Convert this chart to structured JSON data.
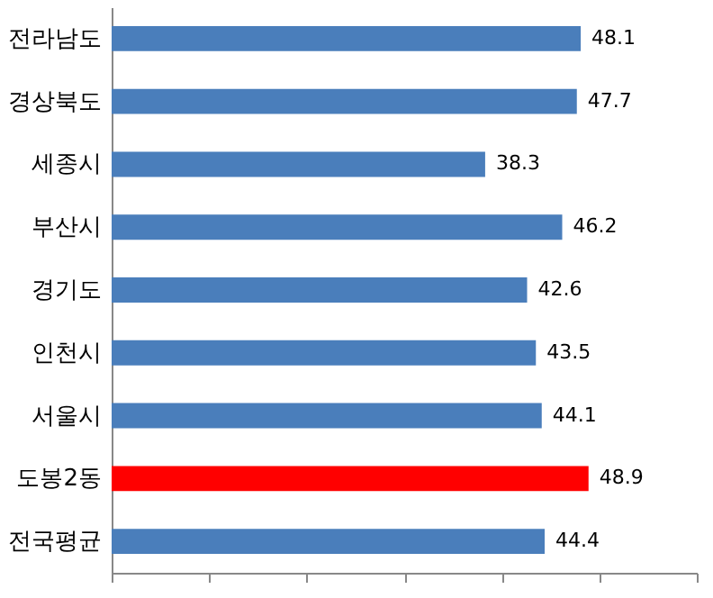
{
  "chart_data": {
    "type": "bar",
    "orientation": "horizontal",
    "categories": [
      "전라남도",
      "경상북도",
      "세종시",
      "부산시",
      "경기도",
      "인천시",
      "서울시",
      "도봉2동",
      "전국평균"
    ],
    "values": [
      48.1,
      47.7,
      38.3,
      46.2,
      42.6,
      43.5,
      44.1,
      48.9,
      44.4
    ],
    "colors": [
      "#4a7ebb",
      "#4a7ebb",
      "#4a7ebb",
      "#4a7ebb",
      "#4a7ebb",
      "#4a7ebb",
      "#4a7ebb",
      "#ff0000",
      "#4a7ebb"
    ],
    "xlim": [
      0,
      60
    ],
    "xticks": [
      {
        "value": 0,
        "label": null
      },
      {
        "value": 10,
        "label": null
      },
      {
        "value": 20,
        "label": null
      },
      {
        "value": 30,
        "label": null
      },
      {
        "value": 40,
        "label": null
      },
      {
        "value": 50,
        "label": null
      },
      {
        "value": 60,
        "label": null
      }
    ],
    "tick_labels": "y",
    "data_labels": true,
    "grid": false,
    "legend": false
  }
}
